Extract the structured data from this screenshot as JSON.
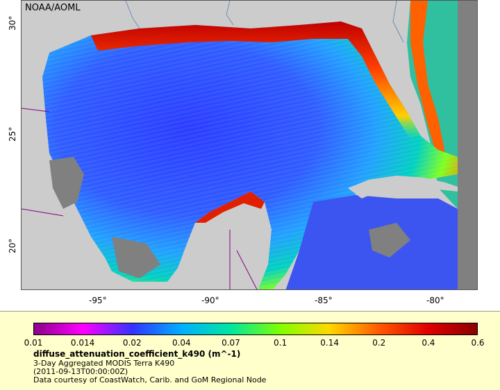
{
  "map": {
    "corner_label": "NOAA/AOML",
    "lat_ticks": [
      "30°",
      "25°",
      "20°"
    ],
    "lon_ticks": [
      "-95°",
      "-90°",
      "-85°",
      "-80°"
    ]
  },
  "legend": {
    "ticks": [
      "0.01",
      "0.014",
      "0.02",
      "0.04",
      "0.07",
      "0.1",
      "0.14",
      "0.2",
      "0.4",
      "0.6"
    ],
    "colors": [
      "#8b008b",
      "#ff00ff",
      "#3333ff",
      "#00b0ff",
      "#00e6a0",
      "#80ff00",
      "#ffd800",
      "#ff5a00",
      "#e00000",
      "#8b0000"
    ],
    "title": "diffuse_attenuation_coefficient_k490 (m^-1)",
    "line1": "3-Day Aggregated MODIS Terra K490",
    "line2": "(2011-09-13T00:00:00Z)",
    "line3": "Data courtesy of CoastWatch, Carib. and GoM Regional Node"
  },
  "colors": {
    "land": "#cccccc",
    "nodata": "#808080",
    "rivers": "#6a8fb8",
    "borders": "#800080",
    "panel": "#ffffcc"
  }
}
